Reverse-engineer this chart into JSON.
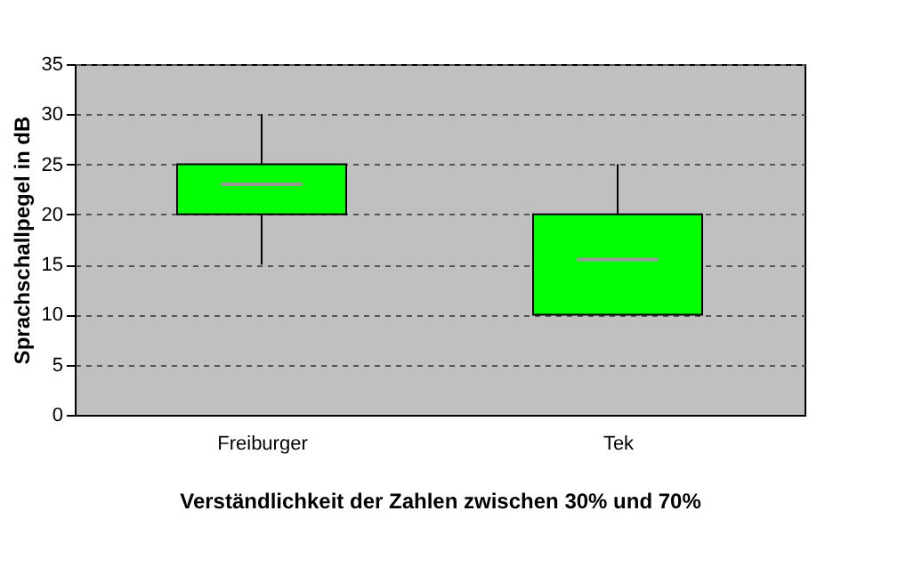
{
  "chart_data": {
    "type": "box",
    "xlabel": "Verständlichkeit der Zahlen zwischen 30% und 70%",
    "ylabel": "Sprachschallpegel in dB",
    "categories": [
      "Freiburger",
      "Tek"
    ],
    "series": [
      {
        "color": "#00ff00",
        "boxes": [
          {
            "low": 15,
            "q1": 20,
            "median": 23,
            "q3": 25,
            "high": 30
          },
          {
            "low": 10,
            "q1": 10,
            "median": 15.5,
            "q3": 20,
            "high": 25
          }
        ]
      }
    ],
    "ylim": [
      0,
      35
    ],
    "yticks": [
      0,
      5,
      10,
      15,
      20,
      25,
      30,
      35
    ],
    "grid": "y"
  }
}
